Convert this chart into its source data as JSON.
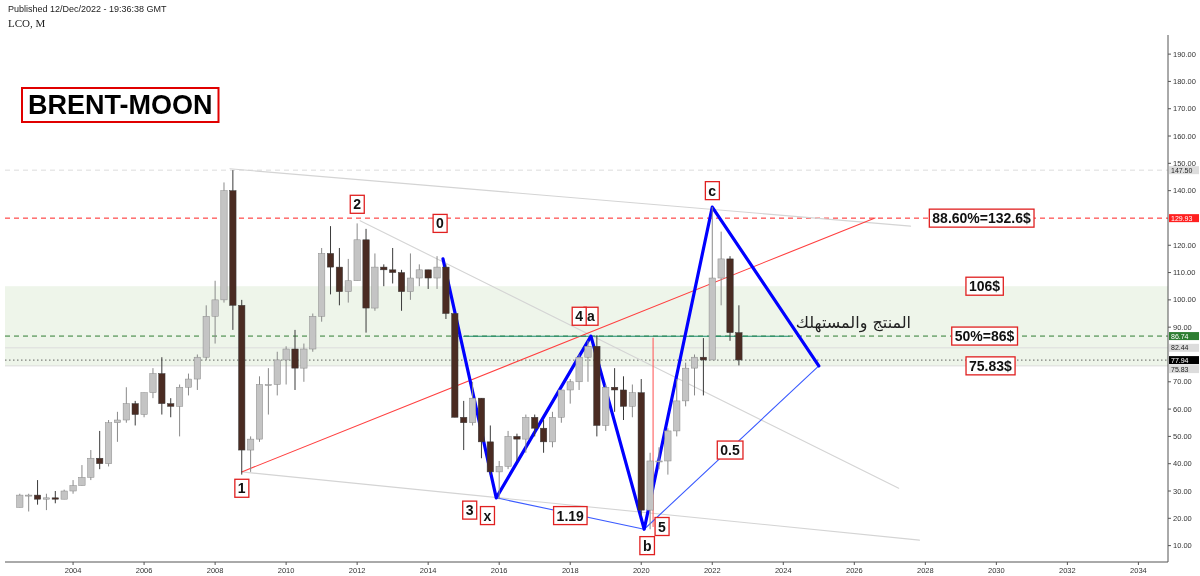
{
  "chart_data": {
    "type": "candlestick",
    "title": "BRENT-MOON",
    "subtitle": "LCO, M",
    "annotations": [
      "Published 12/Dec/2022 - 19:36:38 GMT",
      {
        "text": "0",
        "x": "2014-05",
        "y": 128
      },
      {
        "text": "x",
        "x": "2015-09",
        "y": 21
      },
      {
        "text": "a",
        "x": "2018-08",
        "y": 94
      },
      {
        "text": "b",
        "x": "2020-03",
        "y": 10
      },
      {
        "text": "c",
        "x": "2022-01",
        "y": 140
      },
      {
        "text": "1",
        "x": "2008-10",
        "y": 31
      },
      {
        "text": "2",
        "x": "2012-01",
        "y": 135
      },
      {
        "text": "3",
        "x": "2015-03",
        "y": 23
      },
      {
        "text": "4",
        "x": "2018-04",
        "y": 94
      },
      {
        "text": "5",
        "x": "2020-08",
        "y": 17
      },
      {
        "text": "1.19",
        "x": "2018-01",
        "y": 21
      },
      {
        "text": "0.5",
        "x": "2022-07",
        "y": 45
      },
      {
        "text": "88.60%=132.6$",
        "x": "2029-08",
        "y": 129.93
      },
      {
        "text": "106$",
        "x": "2029-09",
        "y": 105
      },
      {
        "text": "50%=86$",
        "x": "2029-09",
        "y": 86.74
      },
      {
        "text": "75.83$",
        "x": "2029-11",
        "y": 75.83
      },
      {
        "text": "المنتج والمستهلك",
        "x": "2025-10",
        "y": 86.74
      }
    ],
    "x": [
      "2002-07",
      "2002-10",
      "2003-01",
      "2003-04",
      "2003-07",
      "2003-10",
      "2004-01",
      "2004-04",
      "2004-07",
      "2004-10",
      "2005-01",
      "2005-04",
      "2005-07",
      "2005-10",
      "2006-01",
      "2006-04",
      "2006-07",
      "2006-10",
      "2007-01",
      "2007-04",
      "2007-07",
      "2007-10",
      "2008-01",
      "2008-04",
      "2008-07",
      "2008-10",
      "2009-01",
      "2009-04",
      "2009-07",
      "2009-10",
      "2010-01",
      "2010-04",
      "2010-07",
      "2010-10",
      "2011-01",
      "2011-04",
      "2011-07",
      "2011-10",
      "2012-01",
      "2012-04",
      "2012-07",
      "2012-10",
      "2013-01",
      "2013-04",
      "2013-07",
      "2013-10",
      "2014-01",
      "2014-04",
      "2014-07",
      "2014-10",
      "2015-01",
      "2015-04",
      "2015-07",
      "2015-10",
      "2016-01",
      "2016-04",
      "2016-07",
      "2016-10",
      "2017-01",
      "2017-04",
      "2017-07",
      "2017-10",
      "2018-01",
      "2018-04",
      "2018-07",
      "2018-10",
      "2019-01",
      "2019-04",
      "2019-07",
      "2019-10",
      "2020-01",
      "2020-04",
      "2020-07",
      "2020-10",
      "2021-01",
      "2021-04",
      "2021-07",
      "2021-10",
      "2022-01",
      "2022-04",
      "2022-07",
      "2022-10"
    ],
    "ohlc": [
      [
        24,
        29,
        24,
        28.5
      ],
      [
        28.5,
        29,
        22.5,
        28.5
      ],
      [
        28.5,
        34,
        25,
        27
      ],
      [
        27,
        29,
        23,
        27.5
      ],
      [
        27.5,
        30,
        25.5,
        27
      ],
      [
        27,
        30.5,
        27,
        30
      ],
      [
        30,
        34,
        29,
        32
      ],
      [
        32,
        39.5,
        32,
        35
      ],
      [
        35,
        45,
        34,
        42
      ],
      [
        42,
        52,
        38,
        40
      ],
      [
        40,
        56,
        39,
        55
      ],
      [
        55,
        59,
        48,
        56
      ],
      [
        56,
        68,
        55,
        62
      ],
      [
        62,
        63,
        54,
        58
      ],
      [
        58,
        66,
        57,
        66
      ],
      [
        66,
        75,
        64,
        73
      ],
      [
        73,
        79,
        58,
        62
      ],
      [
        62,
        64,
        57,
        61
      ],
      [
        61,
        69,
        50,
        68
      ],
      [
        68,
        73,
        65,
        71
      ],
      [
        71,
        80,
        67,
        79
      ],
      [
        79,
        98,
        78,
        94
      ],
      [
        94,
        107,
        84,
        100
      ],
      [
        100,
        143,
        99,
        140
      ],
      [
        140,
        147.5,
        89,
        98
      ],
      [
        98,
        100,
        36,
        45
      ],
      [
        45,
        50,
        37,
        49
      ],
      [
        49,
        72,
        48,
        69
      ],
      [
        69,
        75,
        58,
        69
      ],
      [
        69,
        81,
        65,
        78
      ],
      [
        78,
        83,
        69,
        82
      ],
      [
        82,
        89,
        67,
        75
      ],
      [
        75,
        84,
        70,
        82
      ],
      [
        82,
        95,
        81,
        94
      ],
      [
        94,
        119,
        92,
        117
      ],
      [
        117,
        127,
        102,
        112
      ],
      [
        112,
        119,
        98,
        103
      ],
      [
        103,
        115,
        99,
        107
      ],
      [
        107,
        128,
        107,
        122
      ],
      [
        122,
        126,
        88,
        97
      ],
      [
        97,
        117,
        96,
        112
      ],
      [
        112,
        113,
        105,
        111
      ],
      [
        111,
        119,
        106,
        110
      ],
      [
        110,
        111,
        96,
        103
      ],
      [
        103,
        117,
        100,
        108
      ],
      [
        108,
        113,
        105,
        111
      ],
      [
        111,
        111,
        104,
        108
      ],
      [
        108,
        116,
        104,
        112
      ],
      [
        112,
        113,
        93,
        95
      ],
      [
        95,
        95,
        57,
        57
      ],
      [
        57,
        63,
        45,
        55
      ],
      [
        55,
        70,
        54,
        64
      ],
      [
        64,
        64,
        42,
        48
      ],
      [
        48,
        54,
        36,
        37
      ],
      [
        37,
        41,
        27,
        39
      ],
      [
        39,
        52,
        38,
        50
      ],
      [
        50,
        51,
        41,
        49
      ],
      [
        49,
        58,
        44,
        57
      ],
      [
        57,
        58,
        50,
        53
      ],
      [
        53,
        56,
        44,
        48
      ],
      [
        48,
        59,
        46,
        57
      ],
      [
        57,
        67,
        55,
        67
      ],
      [
        67,
        71,
        62,
        70
      ],
      [
        70,
        80,
        67,
        79
      ],
      [
        79,
        85,
        70,
        83
      ],
      [
        83,
        87,
        50,
        54
      ],
      [
        54,
        69,
        52,
        68
      ],
      [
        68,
        75,
        59,
        67
      ],
      [
        67,
        72,
        56,
        61
      ],
      [
        61,
        69,
        57,
        66
      ],
      [
        66,
        71,
        21,
        23
      ],
      [
        23,
        44,
        16,
        41
      ],
      [
        41,
        46,
        38,
        41
      ],
      [
        41,
        53,
        36,
        52
      ],
      [
        52,
        71,
        50,
        63
      ],
      [
        63,
        77,
        61,
        75
      ],
      [
        75,
        80,
        65,
        79
      ],
      [
        79,
        86,
        65,
        78
      ],
      [
        78,
        134,
        78,
        108
      ],
      [
        108,
        125,
        98,
        115
      ],
      [
        115,
        116,
        85,
        88
      ],
      [
        88,
        98,
        76,
        78
      ]
    ],
    "series": [
      {
        "type": "line",
        "color": "#d4d4d4",
        "x": [
          "2008-06",
          "2027-08"
        ],
        "values": [
          148,
          127
        ]
      },
      {
        "type": "line",
        "color": "#d4d4d4",
        "x": [
          "2008-10",
          "2027-11"
        ],
        "values": [
          37,
          12
        ]
      },
      {
        "type": "line",
        "color": "#d4d4d4",
        "x": [
          "2012-02",
          "2027-04"
        ],
        "values": [
          129,
          31
        ]
      },
      {
        "type": "line",
        "color": "#ff4040",
        "x": [
          "2008-10",
          "2026-08"
        ],
        "values": [
          37,
          130
        ]
      },
      {
        "type": "line",
        "color": "#ff6060",
        "x": [
          "2020-05",
          "2020-05"
        ],
        "values": [
          17,
          86
        ]
      },
      {
        "type": "line",
        "color": "#1b8a6b",
        "x": [
          "2015-01",
          "2024-03"
        ],
        "values": [
          86.7,
          86.7
        ]
      },
      {
        "type": "line",
        "color": "#3b5bff",
        "x": [
          "2015-12",
          "2020-02",
          "2025-01"
        ],
        "values": [
          27.5,
          16,
          75.8
        ]
      },
      {
        "type": "line",
        "color": "#0000ff",
        "x": [
          "2014-06",
          "2015-12",
          "2018-08",
          "2020-02",
          "2022-01",
          "2025-01"
        ],
        "values": [
          115,
          27.5,
          86.7,
          16,
          134,
          75.8
        ]
      }
    ],
    "bands": [
      {
        "axis": "y",
        "from": 75.83,
        "to": 105,
        "color": "#eef5ea"
      }
    ],
    "ref_lines": [
      {
        "axis": "y",
        "value": 147.5,
        "label": "147.50",
        "color": "#dcdcdc",
        "line_style": "dashed"
      },
      {
        "axis": "y",
        "value": 129.93,
        "label": "129.93",
        "color": "#ff2020",
        "line_style": "dashed"
      },
      {
        "axis": "y",
        "value": 86.74,
        "label": "86.74",
        "color": "#2e7d32",
        "line_style": "dashed"
      },
      {
        "axis": "y",
        "value": 82.44,
        "label": "82.44",
        "color": "#dcdcdc",
        "line_style": "solid"
      },
      {
        "axis": "y",
        "value": 77.94,
        "label": "77.94",
        "color": "#000000",
        "line_style": "dotted"
      },
      {
        "axis": "y",
        "value": 75.83,
        "label": "75.83",
        "color": "#dcdcdc",
        "line_style": "solid"
      }
    ],
    "xlim": [
      "2002-02",
      "2034-11"
    ],
    "xticks": [
      "2004",
      "2006",
      "2008",
      "2010",
      "2012",
      "2014",
      "2016",
      "2018",
      "2020",
      "2022",
      "2024",
      "2026",
      "2028",
      "2030",
      "2032",
      "2034"
    ],
    "ylim": [
      4,
      197
    ],
    "yticks": [
      {
        "value": 10,
        "label": "10.00"
      },
      {
        "value": 20,
        "label": "20.00"
      },
      {
        "value": 30,
        "label": "30.00"
      },
      {
        "value": 40,
        "label": "40.00"
      },
      {
        "value": 50,
        "label": "50.00"
      },
      {
        "value": 60,
        "label": "60.00"
      },
      {
        "value": 70,
        "label": "70.00"
      },
      {
        "value": 90,
        "label": "90.00"
      },
      {
        "value": 100,
        "label": "100.00"
      },
      {
        "value": 110,
        "label": "110.00"
      },
      {
        "value": 120,
        "label": "120.00"
      },
      {
        "value": 140,
        "label": "140.00"
      },
      {
        "value": 150,
        "label": "150.00"
      },
      {
        "value": 160,
        "label": "160.00"
      },
      {
        "value": 170,
        "label": "170.00"
      },
      {
        "value": 180,
        "label": "180.00"
      },
      {
        "value": 190,
        "label": "190.00"
      }
    ],
    "marker": "none"
  }
}
